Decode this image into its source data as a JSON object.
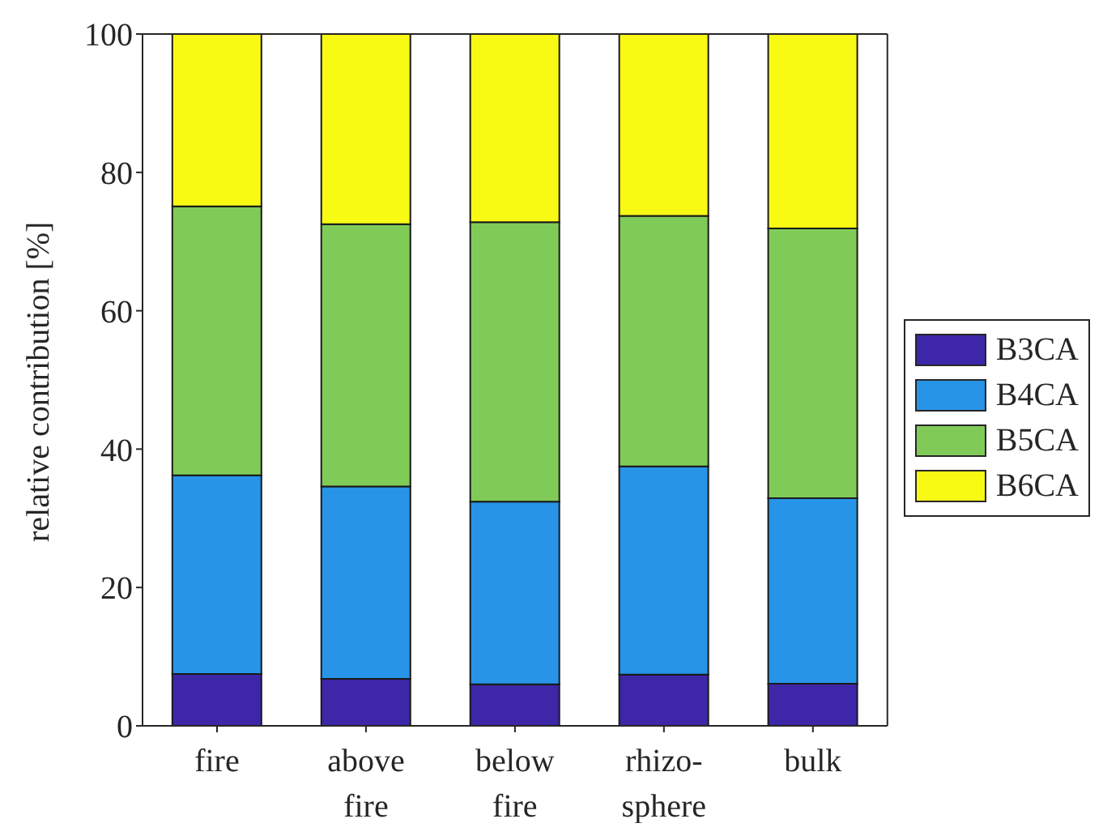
{
  "chart_data": {
    "type": "bar",
    "stacked": true,
    "ylabel": "relative contribution [%]",
    "categories": [
      "fire",
      "above\nfire",
      "below\nfire",
      "rhizo-\nsphere",
      "bulk"
    ],
    "series": [
      {
        "name": "B3CA",
        "color": "#3e26a8",
        "values": [
          7.5,
          6.8,
          6.0,
          7.4,
          6.1
        ]
      },
      {
        "name": "B4CA",
        "color": "#2794e8",
        "values": [
          28.7,
          27.8,
          26.4,
          30.1,
          26.8
        ]
      },
      {
        "name": "B5CA",
        "color": "#80cb58",
        "values": [
          38.9,
          37.9,
          40.4,
          36.2,
          39.0
        ]
      },
      {
        "name": "B6CA",
        "color": "#f9fa14",
        "values": [
          24.9,
          27.5,
          27.2,
          26.3,
          28.1
        ]
      }
    ],
    "ylim": [
      0,
      100
    ],
    "yticks": [
      0,
      20,
      40,
      60,
      80,
      100
    ],
    "grid": false,
    "legend": "right"
  }
}
